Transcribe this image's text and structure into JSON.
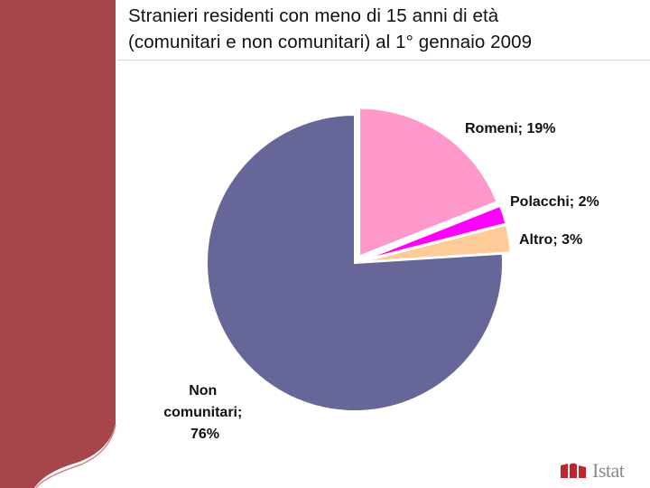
{
  "header": {
    "title_line1": "Stranieri residenti con meno di 15 anni di età",
    "title_line2": "(comunitari e non comunitari)  al 1° gennaio 2009"
  },
  "brand": {
    "logo_text": "Istat",
    "sidebar_color": "#a6454a",
    "logo_color": "#c0262d"
  },
  "chart_data": {
    "type": "pie",
    "title": "Stranieri residenti con meno di 15 anni di età (comunitari e non comunitari)  al 1° gennaio 2009",
    "slices": [
      {
        "name": "Romeni",
        "value": 19,
        "label": "Romeni; 19%",
        "color": "#ff99cc",
        "exploded": true
      },
      {
        "name": "Polacchi",
        "value": 2,
        "label": "Polacchi; 2%",
        "color": "#ff00ff",
        "exploded": true
      },
      {
        "name": "Altro",
        "value": 3,
        "label": "Altro; 3%",
        "color": "#ffcc99",
        "exploded": true
      },
      {
        "name": "Non comunitari",
        "value": 76,
        "label_lines": [
          "Non",
          "comunitari;",
          "76%"
        ],
        "color": "#666699",
        "exploded": false
      }
    ],
    "legend": "none",
    "start_angle": "12 o'clock, clockwise"
  }
}
